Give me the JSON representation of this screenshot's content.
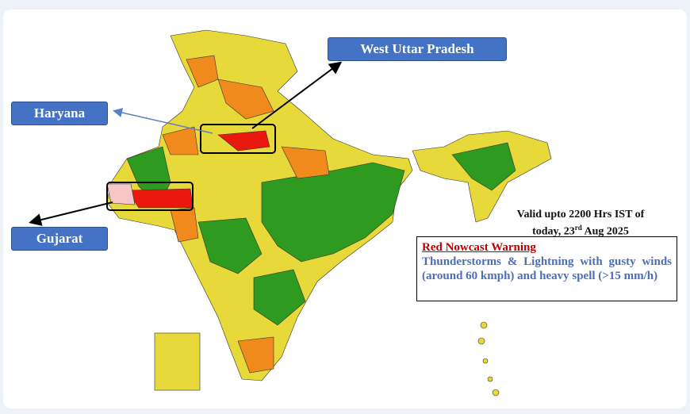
{
  "labels": {
    "west_up": "West Uttar Pradesh",
    "haryana": "Haryana",
    "gujarat": "Gujarat"
  },
  "validity": {
    "line1": "Valid upto 2200 Hrs IST of",
    "line2_start": "today, 23",
    "line2_sup": "rd",
    "line2_end": " Aug 2025"
  },
  "warning": {
    "title": "Red Nowcast Warning",
    "body": "Thunderstorms & Lightning with gusty winds (around 60 kmph) and heavy spell (>15 mm/h)"
  }
}
